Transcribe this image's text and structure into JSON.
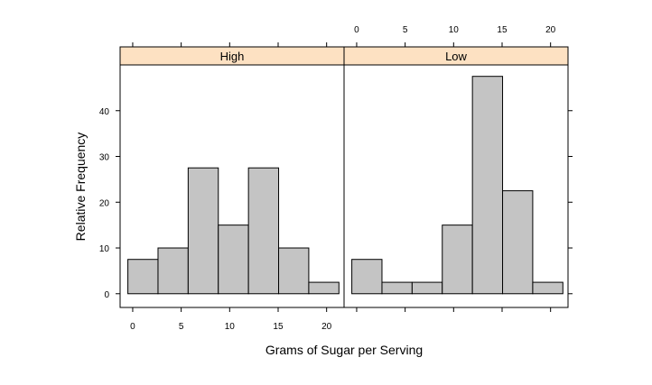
{
  "chart_data": {
    "type": "bar",
    "xlabel": "Grams of Sugar per Serving",
    "ylabel": "Relative Frequency",
    "x_ticks": [
      0,
      5,
      10,
      15,
      20
    ],
    "y_ticks": [
      0,
      10,
      20,
      30,
      40
    ],
    "xlim": [
      -1.3,
      21.8
    ],
    "ylim": [
      -3,
      50
    ],
    "bin_width": 3.11,
    "colors": {
      "strip": "#FDE1C2",
      "bar": "#C4C4C4",
      "axis": "#000000"
    },
    "panels": [
      {
        "name": "High",
        "bins": [
          {
            "left": -0.5,
            "right": 2.61,
            "value": 7.5
          },
          {
            "left": 2.61,
            "right": 5.72,
            "value": 10
          },
          {
            "left": 5.72,
            "right": 8.83,
            "value": 27.5
          },
          {
            "left": 8.83,
            "right": 11.94,
            "value": 15
          },
          {
            "left": 11.94,
            "right": 15.05,
            "value": 27.5
          },
          {
            "left": 15.05,
            "right": 18.16,
            "value": 10
          },
          {
            "left": 18.16,
            "right": 21.27,
            "value": 2.5
          }
        ]
      },
      {
        "name": "Low",
        "bins": [
          {
            "left": -0.5,
            "right": 2.61,
            "value": 7.5
          },
          {
            "left": 2.61,
            "right": 5.72,
            "value": 2.5
          },
          {
            "left": 5.72,
            "right": 8.83,
            "value": 2.5
          },
          {
            "left": 8.83,
            "right": 11.94,
            "value": 15
          },
          {
            "left": 11.94,
            "right": 15.05,
            "value": 47.5
          },
          {
            "left": 15.05,
            "right": 18.16,
            "value": 22.5
          },
          {
            "left": 18.16,
            "right": 21.27,
            "value": 2.5
          }
        ]
      }
    ]
  }
}
